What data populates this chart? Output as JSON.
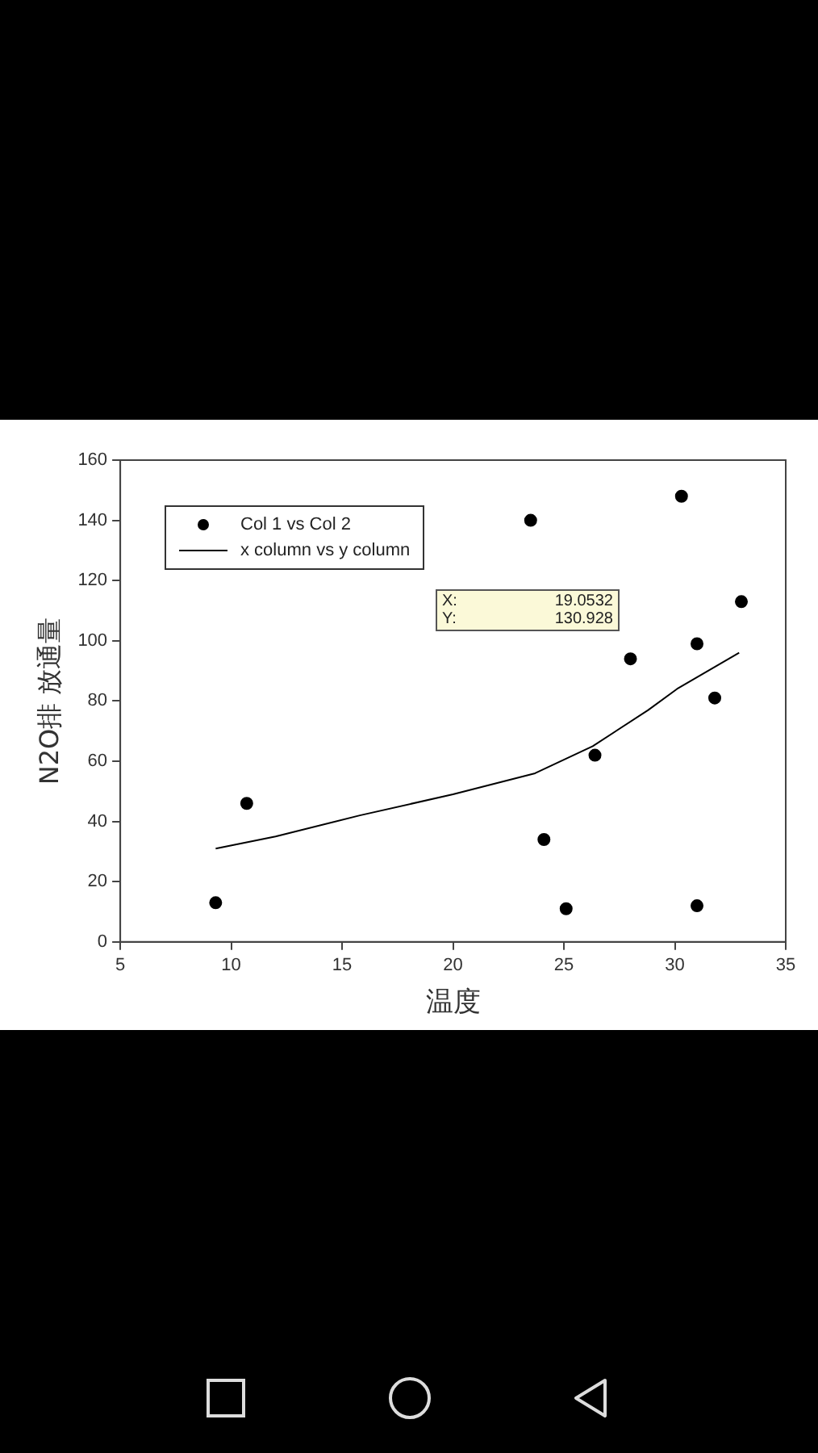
{
  "chart_data": {
    "type": "scatter",
    "xlabel": "温度",
    "ylabel": "N2O排 放通量",
    "xlim": [
      5,
      35
    ],
    "xticks": [
      5,
      10,
      15,
      20,
      25,
      30,
      35
    ],
    "ylim": [
      0,
      160
    ],
    "yticks": [
      0,
      20,
      40,
      60,
      80,
      100,
      120,
      140,
      160
    ],
    "grid": false,
    "legend": "top left",
    "marker": "circle",
    "annotations": [
      "X: 19.0532",
      "Y: 130.928"
    ],
    "series": [
      {
        "name": "Col 1 vs Col 2",
        "color": "#000000",
        "x": [
          9.3,
          10.7,
          23.5,
          24.1,
          25.1,
          26.4,
          28.0,
          30.3,
          31.0,
          31.0,
          31.8,
          33.0
        ],
        "values": [
          13,
          46,
          140,
          34,
          11,
          62,
          94,
          148,
          99,
          12,
          81,
          113
        ]
      },
      {
        "name": "x column vs y column",
        "type": "line",
        "color": "#000000",
        "marker": "none",
        "line_style": "solid",
        "x": [
          9.3,
          12,
          15.8,
          20,
          23.7,
          26.3,
          28.8,
          30.1,
          32.9
        ],
        "values": [
          31,
          35,
          42,
          49,
          56,
          65,
          77,
          84,
          96
        ]
      }
    ]
  }
}
